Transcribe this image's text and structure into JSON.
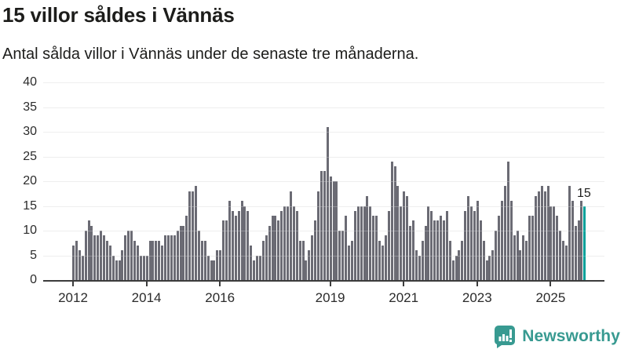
{
  "header": {
    "title": "15 villor såldes i Vännäs",
    "subtitle": "Antal sålda villor i Vännäs under de senaste tre månaderna."
  },
  "chart_data": {
    "type": "bar",
    "title": "15 villor såldes i Vännäs",
    "subtitle": "Antal sålda villor i Vännäs under de senaste tre månaderna.",
    "xlabel": "",
    "ylabel": "",
    "ylim": [
      0,
      40
    ],
    "grid": true,
    "legend_position": "none",
    "y_ticks": [
      0,
      5,
      10,
      15,
      20,
      25,
      30,
      35,
      40
    ],
    "x_ticks": [
      {
        "label": "2012",
        "index": 0
      },
      {
        "label": "2014",
        "index": 24
      },
      {
        "label": "2016",
        "index": 48
      },
      {
        "label": "2019",
        "index": 84
      },
      {
        "label": "2021",
        "index": 108
      },
      {
        "label": "2023",
        "index": 132
      },
      {
        "label": "2025",
        "index": 156
      }
    ],
    "x_unit": "month",
    "x_start": "2012-01",
    "values": [
      7,
      8,
      6,
      5,
      10,
      12,
      11,
      9,
      9,
      10,
      9,
      8,
      7,
      5,
      4,
      4,
      6,
      9,
      10,
      10,
      8,
      7,
      5,
      5,
      5,
      8,
      8,
      8,
      8,
      7,
      9,
      9,
      9,
      9,
      10,
      11,
      11,
      13,
      18,
      18,
      19,
      10,
      8,
      8,
      5,
      4,
      4,
      6,
      6,
      12,
      12,
      16,
      14,
      13,
      14,
      16,
      15,
      14,
      7,
      4,
      5,
      5,
      8,
      9,
      11,
      13,
      13,
      12,
      14,
      15,
      15,
      18,
      15,
      14,
      8,
      8,
      4,
      6,
      9,
      12,
      18,
      22,
      22,
      31,
      21,
      20,
      20,
      10,
      10,
      13,
      7,
      8,
      14,
      15,
      15,
      15,
      17,
      15,
      13,
      13,
      8,
      7,
      9,
      14,
      24,
      23,
      19,
      15,
      18,
      17,
      11,
      12,
      6,
      5,
      8,
      11,
      15,
      14,
      12,
      12,
      13,
      12,
      14,
      8,
      4,
      5,
      6,
      8,
      14,
      17,
      15,
      14,
      16,
      12,
      8,
      4,
      5,
      6,
      10,
      13,
      16,
      19,
      24,
      16,
      9,
      10,
      6,
      9,
      8,
      13,
      13,
      17,
      18,
      19,
      18,
      19,
      15,
      15,
      13,
      10,
      8,
      7,
      19,
      16,
      11,
      12,
      16,
      15
    ],
    "highlight_last": true,
    "last_value_label": "15",
    "bar_color": "#6b6b74",
    "highlight_color": "#00a099",
    "grid_color": "#e8e8e8",
    "axis_color": "#3c3c3c"
  },
  "footer": {
    "brand": "Newsworthy",
    "brand_color": "#389a91",
    "logo_icon": "bar-chart-speech-bubble-icon"
  }
}
